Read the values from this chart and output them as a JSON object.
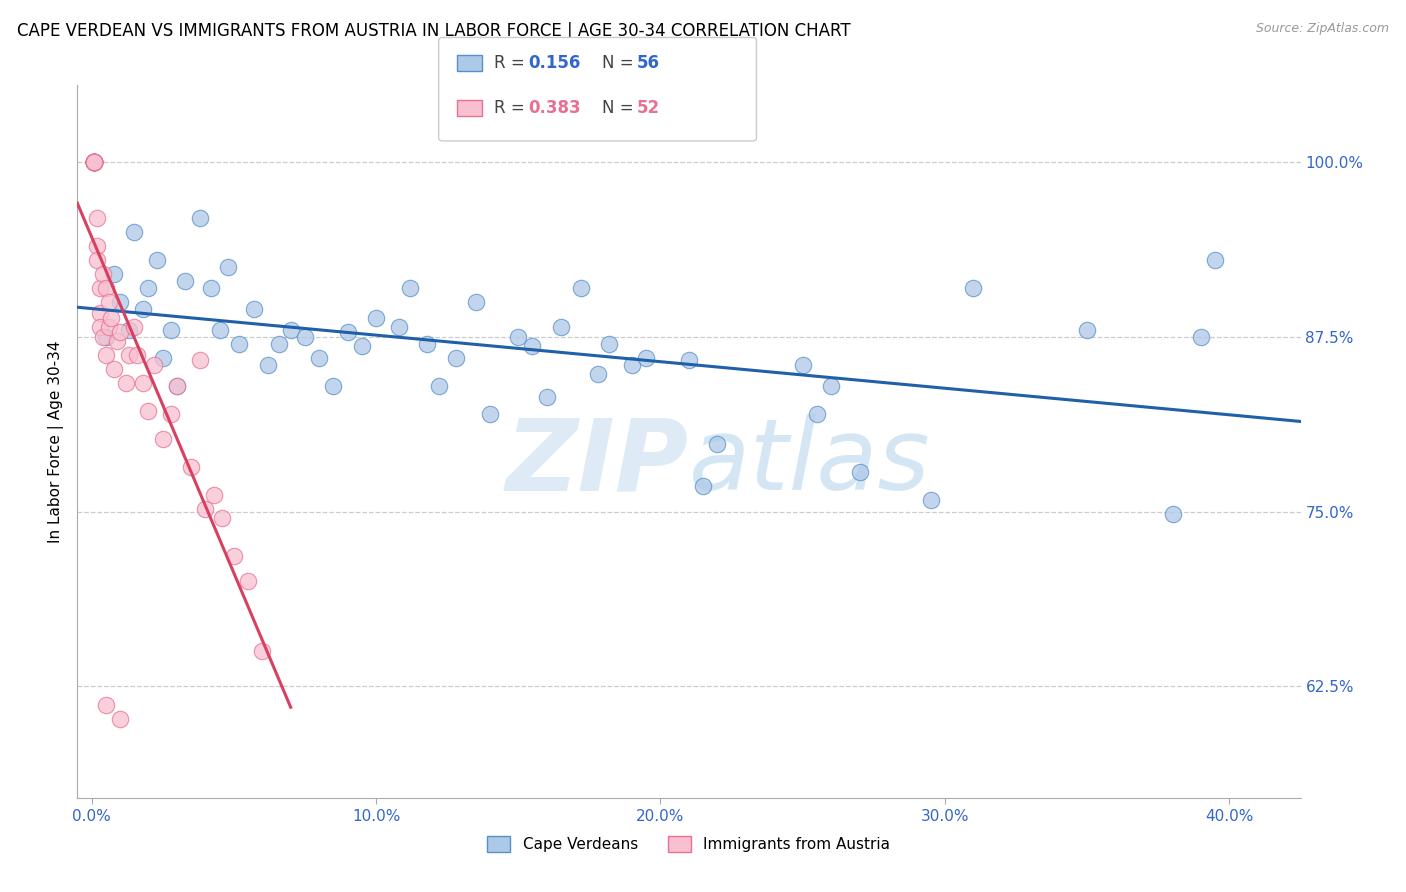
{
  "title": "CAPE VERDEAN VS IMMIGRANTS FROM AUSTRIA IN LABOR FORCE | AGE 30-34 CORRELATION CHART",
  "source": "Source: ZipAtlas.com",
  "ylabel": "In Labor Force | Age 30-34",
  "x_tick_labels": [
    "0.0%",
    "10.0%",
    "20.0%",
    "30.0%",
    "40.0%"
  ],
  "x_tick_positions": [
    0.0,
    0.1,
    0.2,
    0.3,
    0.4
  ],
  "y_tick_labels_right": [
    "62.5%",
    "75.0%",
    "87.5%",
    "100.0%"
  ],
  "y_tick_positions": [
    0.625,
    0.75,
    0.875,
    1.0
  ],
  "ylim": [
    0.545,
    1.055
  ],
  "xlim": [
    -0.005,
    0.425
  ],
  "blue_fill_color": "#aec8e8",
  "pink_fill_color": "#f8c0d0",
  "blue_edge_color": "#5590c8",
  "pink_edge_color": "#e87090",
  "blue_line_color": "#2060a8",
  "pink_line_color": "#d84060",
  "legend_R_blue": "0.156",
  "legend_N_blue": "56",
  "legend_R_pink": "0.383",
  "legend_N_pink": "52",
  "legend_label_blue": "Cape Verdeans",
  "legend_label_pink": "Immigrants from Austria",
  "watermark_zip": "ZIP",
  "watermark_atlas": "atlas",
  "title_fontsize": 12,
  "tick_label_color": "#3366cc",
  "blue_scatter_x": [
    0.005,
    0.008,
    0.01,
    0.013,
    0.015,
    0.018,
    0.02,
    0.023,
    0.025,
    0.028,
    0.03,
    0.033,
    0.038,
    0.042,
    0.045,
    0.048,
    0.052,
    0.057,
    0.062,
    0.066,
    0.07,
    0.075,
    0.08,
    0.085,
    0.09,
    0.095,
    0.1,
    0.108,
    0.112,
    0.118,
    0.122,
    0.128,
    0.135,
    0.14,
    0.15,
    0.155,
    0.16,
    0.165,
    0.172,
    0.178,
    0.182,
    0.19,
    0.195,
    0.21,
    0.215,
    0.22,
    0.25,
    0.255,
    0.26,
    0.27,
    0.295,
    0.31,
    0.35,
    0.38,
    0.39,
    0.395
  ],
  "blue_scatter_y": [
    0.875,
    0.92,
    0.9,
    0.88,
    0.95,
    0.895,
    0.91,
    0.93,
    0.86,
    0.88,
    0.84,
    0.915,
    0.96,
    0.91,
    0.88,
    0.925,
    0.87,
    0.895,
    0.855,
    0.87,
    0.88,
    0.875,
    0.86,
    0.84,
    0.878,
    0.868,
    0.888,
    0.882,
    0.91,
    0.87,
    0.84,
    0.86,
    0.9,
    0.82,
    0.875,
    0.868,
    0.832,
    0.882,
    0.91,
    0.848,
    0.87,
    0.855,
    0.86,
    0.858,
    0.768,
    0.798,
    0.855,
    0.82,
    0.84,
    0.778,
    0.758,
    0.91,
    0.88,
    0.748,
    0.875,
    0.93
  ],
  "pink_scatter_x": [
    0.001,
    0.001,
    0.001,
    0.001,
    0.001,
    0.001,
    0.001,
    0.001,
    0.001,
    0.001,
    0.001,
    0.001,
    0.001,
    0.001,
    0.001,
    0.001,
    0.002,
    0.002,
    0.002,
    0.003,
    0.003,
    0.003,
    0.004,
    0.004,
    0.005,
    0.005,
    0.006,
    0.006,
    0.007,
    0.008,
    0.009,
    0.01,
    0.012,
    0.013,
    0.015,
    0.016,
    0.018,
    0.02,
    0.022,
    0.025,
    0.028,
    0.03,
    0.035,
    0.038,
    0.04,
    0.043,
    0.046,
    0.05,
    0.055,
    0.06,
    0.005,
    0.01
  ],
  "pink_scatter_y": [
    1.0,
    1.0,
    1.0,
    1.0,
    1.0,
    1.0,
    1.0,
    1.0,
    1.0,
    1.0,
    1.0,
    1.0,
    1.0,
    1.0,
    1.0,
    1.0,
    0.96,
    0.94,
    0.93,
    0.91,
    0.892,
    0.882,
    0.92,
    0.875,
    0.862,
    0.91,
    0.882,
    0.9,
    0.888,
    0.852,
    0.872,
    0.878,
    0.842,
    0.862,
    0.882,
    0.862,
    0.842,
    0.822,
    0.855,
    0.802,
    0.82,
    0.84,
    0.782,
    0.858,
    0.752,
    0.762,
    0.745,
    0.718,
    0.7,
    0.65,
    0.612,
    0.602
  ]
}
